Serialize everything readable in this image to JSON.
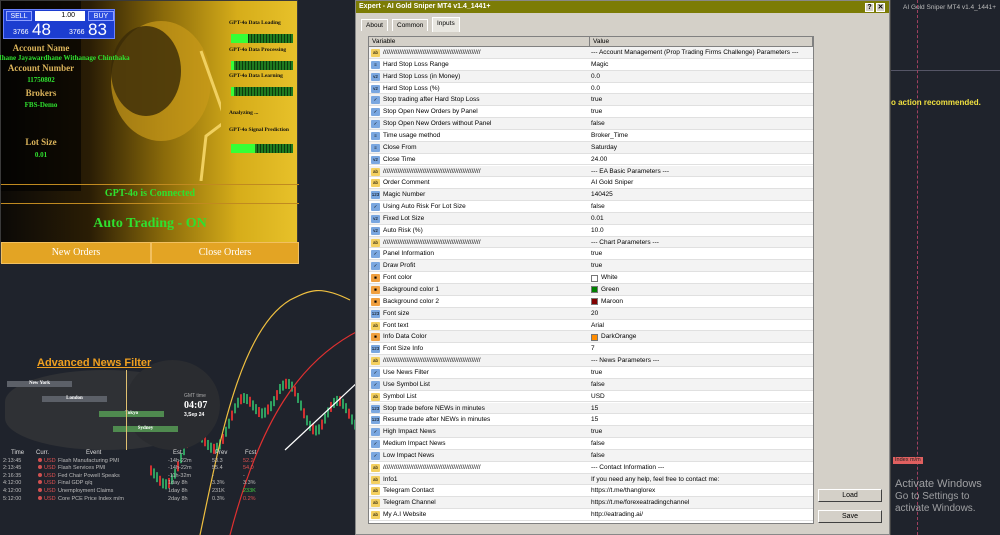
{
  "trade_widget": {
    "sell_label": "SELL",
    "buy_label": "BUY",
    "lot": "1.00",
    "sell_price_small": "3766",
    "sell_price_big": "48",
    "buy_price_small": "3766",
    "buy_price_big": "83"
  },
  "account": {
    "name_label": "Account Name",
    "name": "Ihane Jayawardhane Withanage Chinthaka",
    "number_label": "Account Number",
    "number": "11750802",
    "broker_label": "Brokers",
    "broker": "FBS-Demo",
    "lot_label": "Lot Size",
    "lot": "0.01"
  },
  "gpt": {
    "items": [
      {
        "label": "GPT-4o Data Loading",
        "progress": 0.28
      },
      {
        "label": "GPT-4o Data Processing",
        "progress": 0.05
      },
      {
        "label": "GPT-4o Data Learning",
        "progress": 0.05
      }
    ],
    "analyzing": "Analyzing ...",
    "signal_label": "GPT-4o Signal Prediction",
    "signal_progress": 0.38,
    "connected": "GPT-4o is Connected",
    "auto_trading": "Auto Trading - ON",
    "new_orders": "New Orders",
    "close_orders": "Close Orders"
  },
  "news": {
    "title": "Advanced News Filter",
    "cities": [
      "New York",
      "London",
      "Tokyo",
      "Sydney"
    ],
    "gmt_label": "GMT time",
    "gmt_time": "04:07",
    "gmt_date": "3,Sep 24",
    "headers": [
      "Time",
      "Curr.",
      "Event",
      "Est.",
      "Prev",
      "Fcst"
    ],
    "rows": [
      [
        "2:13:45",
        "USD",
        "Flash Manufacturing PMI",
        "-14h-22m",
        "53.3",
        "52.2"
      ],
      [
        "2:13:45",
        "USD",
        "Flash Services PMI",
        "-14h-22m",
        "55.4",
        "54.0"
      ],
      [
        "2:16:35",
        "USD",
        "Fed Chair Powell Speaks",
        "-11h-32m",
        "-",
        "-"
      ],
      [
        "4:12:00",
        "USD",
        "Final GDP q/q",
        "1day 8h",
        "3.3%",
        "3.3%"
      ],
      [
        "4:12:00",
        "USD",
        "Unemployment Claims",
        "1day 8h",
        "231K",
        "233K"
      ],
      [
        "5:12:00",
        "USD",
        "Core PCE Price Index m/m",
        "2day 8h",
        "0.3%",
        "0.2%"
      ]
    ],
    "fcst_colors": [
      "#e05050",
      "#e05050",
      "#bbbbbb",
      "#bbbbbb",
      "#40d040",
      "#e05050"
    ]
  },
  "dialog": {
    "title": "Expert - AI Gold Sniper MT4 v1.4_1441+",
    "help": "?",
    "close": "✕",
    "tabs": [
      "About",
      "Common",
      "Inputs"
    ],
    "active_tab": "Inputs",
    "col_variable": "Variable",
    "col_value": "Value",
    "load": "Load",
    "save": "Save",
    "rows": [
      {
        "t": "string",
        "var": "//////////////////////////////////////////////////////",
        "val": "--- Account Management (Prop Trading Firms Challenge) Parameters ---"
      },
      {
        "t": "enum",
        "var": "Hard Stop Loss Range",
        "val": "Magic"
      },
      {
        "t": "double",
        "var": "Hard Stop Loss (in Money)",
        "val": "0.0"
      },
      {
        "t": "double",
        "var": "Hard Stop Loss (%)",
        "val": "0.0"
      },
      {
        "t": "bool",
        "var": "Stop trading after Hard Stop Loss",
        "val": "true"
      },
      {
        "t": "bool",
        "var": "Stop Open New Orders by Panel",
        "val": "true"
      },
      {
        "t": "bool",
        "var": "Stop Open New Orders without Panel",
        "val": "false"
      },
      {
        "t": "enum",
        "var": "Time usage method",
        "val": "Broker_Time"
      },
      {
        "t": "enum",
        "var": "Close From",
        "val": "Saturday"
      },
      {
        "t": "double",
        "var": "Close Time",
        "val": "24.00"
      },
      {
        "t": "string",
        "var": "//////////////////////////////////////////////////////",
        "val": "--- EA Basic Parameters ---"
      },
      {
        "t": "string",
        "var": "Order Comment",
        "val": "AI Gold Sniper"
      },
      {
        "t": "int",
        "var": "Magic Number",
        "val": "140425"
      },
      {
        "t": "bool",
        "var": "Using Auto Risk For Lot Size",
        "val": "false"
      },
      {
        "t": "double",
        "var": "Fixed Lot Size",
        "val": "0.01"
      },
      {
        "t": "double",
        "var": "Auto Risk (%)",
        "val": "10.0"
      },
      {
        "t": "string",
        "var": "//////////////////////////////////////////////////////",
        "val": "--- Chart Parameters ---"
      },
      {
        "t": "bool",
        "var": "Panel Information",
        "val": "true"
      },
      {
        "t": "bool",
        "var": "Draw Profit",
        "val": "true"
      },
      {
        "t": "color",
        "var": "Font color",
        "val": "White",
        "swatch": "#ffffff"
      },
      {
        "t": "color",
        "var": "Background color 1",
        "val": "Green",
        "swatch": "#008000"
      },
      {
        "t": "color",
        "var": "Background color 2",
        "val": "Maroon",
        "swatch": "#800000"
      },
      {
        "t": "int",
        "var": "Font size",
        "val": "20"
      },
      {
        "t": "string",
        "var": "Font text",
        "val": "Arial"
      },
      {
        "t": "color",
        "var": "Info Data Color",
        "val": "DarkOrange",
        "swatch": "#ff8c00"
      },
      {
        "t": "int",
        "var": "Font Size Info",
        "val": "7"
      },
      {
        "t": "string",
        "var": "//////////////////////////////////////////////////////",
        "val": "--- News Parameters ---"
      },
      {
        "t": "bool",
        "var": "Use News Filter",
        "val": "true"
      },
      {
        "t": "bool",
        "var": "Use Symbol List",
        "val": "false"
      },
      {
        "t": "string",
        "var": "Symbol List",
        "val": "USD"
      },
      {
        "t": "int",
        "var": "Stop trade before NEWs in minutes",
        "val": "15"
      },
      {
        "t": "int",
        "var": "Resume trade after NEWs in minutes",
        "val": "15"
      },
      {
        "t": "bool",
        "var": "High Impact News",
        "val": "true"
      },
      {
        "t": "bool",
        "var": "Medium Impact News",
        "val": "false"
      },
      {
        "t": "bool",
        "var": "Low Impact News",
        "val": "false"
      },
      {
        "t": "string",
        "var": "//////////////////////////////////////////////////////",
        "val": "--- Contact Information ---"
      },
      {
        "t": "string",
        "var": "Info1",
        "val": "If you need any help, feel free to contact me:"
      },
      {
        "t": "string",
        "var": "Telegram Contact",
        "val": "https://t.me/thanglorex"
      },
      {
        "t": "string",
        "var": "Telegram Channel",
        "val": "https://t.me/forexeatradingchannel"
      },
      {
        "t": "string",
        "var": "My A.I Website",
        "val": "http://eatrading.ai/"
      }
    ]
  },
  "right_chart": {
    "title": "AI Gold Sniper MT4 v1.4_1441+",
    "message": "o action recommended.",
    "news_tag": "Index m/m"
  },
  "watermark": {
    "line1": "Activate Windows",
    "line2": "Go to Settings to activate Windows."
  },
  "colors": {
    "dialog_title": "#7c7c05",
    "panel_gold": "#e3a424",
    "green_text": "#2fe02f",
    "chart_bg": "#1f232c"
  }
}
